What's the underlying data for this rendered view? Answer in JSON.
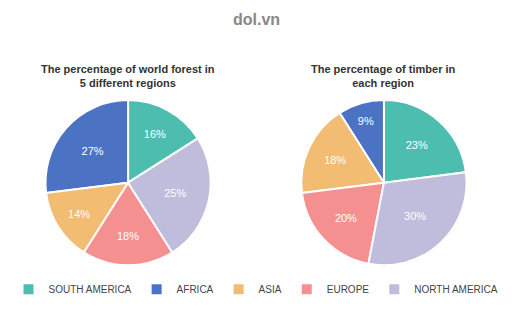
{
  "chart_data": [
    {
      "type": "pie",
      "title": "The percentage of world forest in\n5 different regions",
      "categories": [
        "SOUTH AMERICA",
        "AFRICA",
        "ASIA",
        "EUROPE",
        "NORTH AMERICA"
      ],
      "values": [
        16,
        27,
        14,
        18,
        25
      ],
      "value_labels": [
        "16%",
        "27%",
        "14%",
        "18%",
        "25%"
      ],
      "colors": [
        "#4DBDB0",
        "#4C72C4",
        "#F2BC72",
        "#F59090",
        "#C0BCDC"
      ],
      "data_labels": true,
      "legend": "bottom",
      "annotations": [
        "dol.vn"
      ]
    },
    {
      "type": "pie",
      "title": "The percentage of timber in\neach region",
      "categories": [
        "SOUTH AMERICA",
        "AFRICA",
        "ASIA",
        "EUROPE",
        "NORTH AMERICA"
      ],
      "values": [
        23,
        9,
        18,
        20,
        30
      ],
      "value_labels": [
        "23%",
        "9%",
        "18%",
        "20%",
        "30%"
      ],
      "colors": [
        "#4DBDB0",
        "#4C72C4",
        "#F2BC72",
        "#F59090",
        "#C0BCDC"
      ],
      "data_labels": true,
      "legend": "bottom"
    }
  ]
}
